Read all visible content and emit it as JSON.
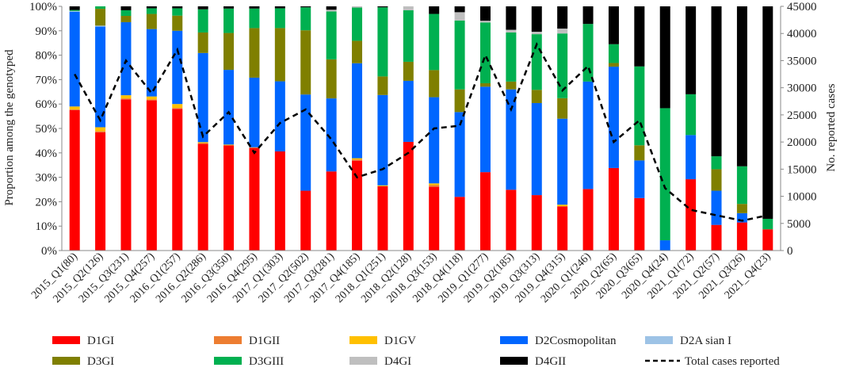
{
  "chart_data": {
    "type": "bar",
    "stacked": true,
    "percent_axis": "left",
    "title": "",
    "ylabel": "Proportion among the genotyped",
    "y2label": "No. reported cases",
    "ylim": [
      0,
      100
    ],
    "y2lim": [
      0,
      45000
    ],
    "yticks": [
      "0%",
      "10%",
      "20%",
      "30%",
      "40%",
      "50%",
      "60%",
      "70%",
      "80%",
      "90%",
      "100%"
    ],
    "y2ticks": [
      "0",
      "5000",
      "10000",
      "15000",
      "20000",
      "25000",
      "30000",
      "35000",
      "40000",
      "45000"
    ],
    "categories": [
      "2015_Q1(80)",
      "2015_Q2(126)",
      "2015_Q3(231)",
      "2015_Q4(257)",
      "2016_Q1(257)",
      "2016_Q2(286)",
      "2016_Q3(350)",
      "2016_Q4(295)",
      "2017_Q1(303)",
      "2017_Q2(502)",
      "2017_Q3(281)",
      "2017_Q4(185)",
      "2018_Q1(251)",
      "2018_Q2(128)",
      "2018_Q3(153)",
      "2018_Q4(118)",
      "2019_Q1(277)",
      "2019_Q2(185)",
      "2019_Q3(313)",
      "2019_Q4(315)",
      "2020_Q1(246)",
      "2020_Q2(65)",
      "2020_Q3(65)",
      "2020_Q4(24)",
      "2021_Q1(72)",
      "2021_Q2(57)",
      "2021_Q3(26)",
      "2021_Q4(23)"
    ],
    "series": [
      {
        "name": "D1GI",
        "color": "#ff0000",
        "values": [
          57.5,
          48.4,
          61.9,
          61.5,
          58.0,
          43.7,
          43.1,
          42.0,
          40.6,
          24.5,
          32.4,
          36.8,
          26.3,
          44.5,
          26.1,
          22.0,
          32.1,
          24.9,
          22.7,
          18.1,
          25.2,
          33.8,
          21.5,
          0.0,
          29.2,
          10.5,
          11.5,
          8.7
        ]
      },
      {
        "name": "D1GII",
        "color": "#ed7d31",
        "values": [
          0.3,
          0.5,
          0.4,
          0.4,
          0.4,
          0.3,
          0.0,
          0.3,
          0.0,
          0.0,
          0.0,
          0.5,
          0.0,
          0.0,
          0.7,
          0.0,
          0.0,
          0.0,
          0.0,
          0.0,
          0.0,
          0.0,
          0.0,
          0.0,
          0.0,
          0.0,
          0.0,
          0.0
        ]
      },
      {
        "name": "D1GV",
        "color": "#ffc000",
        "values": [
          1.2,
          1.6,
          1.3,
          1.2,
          1.6,
          0.4,
          0.3,
          0.0,
          0.0,
          0.0,
          0.0,
          0.5,
          0.4,
          0.0,
          0.7,
          0.0,
          0.0,
          0.0,
          0.0,
          0.7,
          0.0,
          0.0,
          0.0,
          0.0,
          0.0,
          0.0,
          0.0,
          0.0
        ]
      },
      {
        "name": "D2Cosmopolitan",
        "color": "#0066ff",
        "values": [
          38.8,
          41.2,
          29.9,
          27.6,
          30.0,
          36.5,
          30.6,
          28.5,
          28.7,
          39.4,
          29.9,
          38.9,
          37.0,
          25.0,
          35.3,
          34.7,
          35.0,
          41.1,
          37.7,
          35.2,
          44.0,
          41.5,
          15.4,
          4.2,
          18.1,
          14.0,
          3.8,
          0.0
        ]
      },
      {
        "name": "D2Asian I",
        "color": "#9dc3e6",
        "values": [
          0.3,
          0.4,
          0.0,
          0.0,
          0.0,
          0.0,
          0.0,
          0.0,
          0.0,
          0.0,
          0.0,
          0.0,
          0.0,
          0.0,
          0.0,
          0.0,
          0.0,
          0.0,
          0.0,
          0.0,
          0.0,
          0.0,
          0.0,
          0.0,
          0.0,
          0.0,
          0.0,
          0.0
        ]
      },
      {
        "name": "D3GI",
        "color": "#7f7f00",
        "values": [
          0.0,
          6.9,
          2.6,
          6.2,
          6.2,
          8.4,
          15.1,
          20.3,
          21.8,
          26.3,
          16.0,
          9.2,
          7.6,
          7.8,
          11.1,
          9.3,
          1.4,
          3.2,
          5.4,
          8.4,
          0.0,
          1.5,
          6.2,
          0.0,
          0.0,
          8.8,
          3.8,
          0.0
        ]
      },
      {
        "name": "D3GIII",
        "color": "#00b050",
        "values": [
          0.4,
          1.0,
          2.3,
          2.3,
          3.0,
          9.5,
          10.0,
          8.0,
          8.1,
          9.4,
          19.6,
          13.6,
          28.3,
          21.1,
          23.0,
          28.2,
          24.9,
          20.1,
          22.8,
          26.5,
          23.6,
          7.7,
          32.3,
          54.1,
          16.7,
          5.3,
          15.4,
          4.3
        ]
      },
      {
        "name": "D4GI",
        "color": "#bfbfbf",
        "values": [
          0.0,
          0.0,
          0.0,
          0.0,
          0.0,
          0.0,
          0.0,
          0.0,
          0.0,
          0.0,
          0.7,
          0.5,
          0.0,
          1.6,
          0.0,
          3.4,
          0.7,
          1.1,
          1.0,
          2.0,
          0.0,
          0.0,
          0.0,
          0.0,
          0.0,
          0.0,
          0.0,
          0.0
        ]
      },
      {
        "name": "D4GII",
        "color": "#000000",
        "values": [
          1.5,
          0.0,
          1.6,
          0.8,
          0.8,
          1.2,
          0.9,
          0.9,
          0.8,
          0.4,
          1.4,
          0.0,
          0.4,
          0.0,
          3.1,
          2.4,
          5.9,
          9.6,
          10.4,
          9.1,
          7.2,
          15.5,
          24.6,
          41.7,
          36.0,
          61.4,
          65.5,
          87.0
        ]
      }
    ],
    "line_series": {
      "name": "Total cases reported",
      "axis": "right",
      "color": "#000000",
      "dash": "dashed",
      "values": [
        32500,
        24000,
        35000,
        29000,
        37000,
        21000,
        25500,
        18000,
        23500,
        26000,
        20500,
        13500,
        15000,
        18000,
        22500,
        23000,
        36000,
        26000,
        38000,
        29500,
        34000,
        20000,
        24000,
        11500,
        7500,
        6500,
        5500,
        6500
      ]
    },
    "legend": {
      "placement": "bottom",
      "items": [
        "D1GI",
        "D1GII",
        "D1GV",
        "D2Cosmopolitan",
        "D2A sian I",
        "D3GI",
        "D3GIII",
        "D4GI",
        "D4GII",
        "Total cases reported"
      ]
    }
  }
}
